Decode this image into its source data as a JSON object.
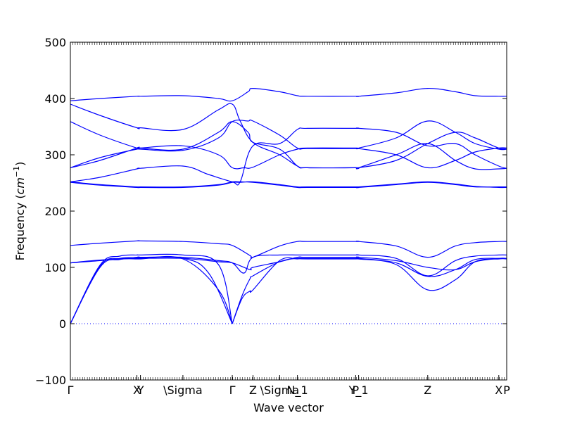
{
  "chart_data": {
    "type": "line",
    "title": "",
    "xlabel": "Wave vector",
    "ylabel": "Frequency (",
    "ylabel_math_main": "cm",
    "ylabel_math_sup": "−1",
    "ylabel_close": ")",
    "ylim": [
      -100,
      500
    ],
    "yticks": [
      -100,
      0,
      100,
      200,
      300,
      400,
      500
    ],
    "xlim": [
      0,
      22.1
    ],
    "grid": false,
    "legend": "none",
    "zero_line": {
      "y": 0,
      "style": "dotted",
      "color": "#0000ff"
    },
    "line_color": "#0000ff",
    "x_tick_positions": [
      0,
      3.37,
      3.55,
      5.7,
      8.2,
      9.25,
      10.6,
      11.5,
      14.45,
      14.6,
      18.1,
      21.7,
      22.1
    ],
    "x_tick_labels": [
      "Γ",
      "X",
      "Y",
      "\\Sigma",
      "Γ",
      "Z",
      "\\Sigma",
      "N_1",
      "P",
      "Y_1",
      "Z",
      "X",
      "P"
    ],
    "series": [
      {
        "x": [
          0,
          1.5,
          2.5,
          3.37,
          3.55,
          5.7,
          7.5,
          8.2
        ],
        "y": [
          0,
          100,
          114,
          115,
          115,
          115,
          60,
          0
        ]
      },
      {
        "x": [
          0,
          1.5,
          2.5,
          3.37,
          3.55,
          5.7,
          7.0,
          8.2
        ],
        "y": [
          0,
          102,
          116,
          117,
          117,
          116,
          90,
          0
        ]
      },
      {
        "x": [
          0,
          1.5,
          2.5,
          3.37,
          3.55,
          5.7,
          7.5,
          8.2
        ],
        "y": [
          0,
          104,
          120,
          122,
          122,
          122,
          105,
          0
        ]
      },
      {
        "x": [
          8.2,
          8.7,
          9.1,
          9.25,
          10.6,
          11.5,
          12.0,
          14.45,
          14.6,
          16.5,
          18.1,
          19.5,
          20.5,
          21.7,
          22.1
        ],
        "y": [
          0,
          45,
          58,
          60,
          112,
          115,
          115,
          115,
          115,
          105,
          60,
          78,
          110,
          115,
          115
        ]
      },
      {
        "x": [
          8.2,
          8.7,
          9.1,
          9.25,
          10.6,
          11.5,
          12.0,
          14.45,
          14.6,
          16.5,
          18.1,
          19.5,
          20.5,
          21.7,
          22.1
        ],
        "y": [
          0,
          50,
          80,
          85,
          110,
          116,
          116,
          116,
          116,
          108,
          84,
          96,
          114,
          116,
          116
        ]
      },
      {
        "x": [
          0,
          1.5,
          3.37,
          3.55,
          5.7,
          7.5,
          8.2,
          9.1,
          9.25,
          10.6,
          11.5,
          12.0,
          14.45,
          14.6,
          16.5,
          18.1,
          19.5,
          20.5,
          21.7,
          22.1
        ],
        "y": [
          108,
          113,
          116,
          116,
          116,
          110,
          108,
          96,
          100,
          110,
          118,
          118,
          118,
          118,
          112,
          100,
          96,
          110,
          116,
          116
        ]
      },
      {
        "x": [
          0,
          1.5,
          3.37,
          3.55,
          5.7,
          7.5,
          8.2,
          8.8,
          9.25,
          10.6,
          11.5,
          12.0,
          14.45,
          14.6,
          16.5,
          18.1,
          19.5,
          20.5,
          21.7,
          22.1
        ],
        "y": [
          108,
          112,
          118,
          118,
          118,
          112,
          108,
          90,
          118,
          122,
          122,
          122,
          122,
          122,
          116,
          85,
          112,
          120,
          122,
          122
        ]
      },
      {
        "x": [
          0,
          1.5,
          3.37,
          3.55,
          5.7,
          7.5,
          8.2,
          9.1,
          9.25,
          10.6,
          11.5,
          12.0,
          14.45,
          14.6,
          16.5,
          18.1,
          19.5,
          20.5,
          21.7,
          22.1
        ],
        "y": [
          139,
          143,
          147,
          147,
          146,
          142,
          139,
          121,
          118,
          138,
          146,
          146,
          146,
          146,
          138,
          118,
          138,
          144,
          146,
          146
        ]
      },
      {
        "x": [
          0,
          1.5,
          3.37,
          3.55,
          5.7,
          7.5,
          8.2,
          8.6,
          9.25,
          10.6,
          11.5,
          12.0,
          14.45,
          14.6,
          16.5,
          18.1,
          19.5,
          20.5,
          21.7,
          22.1
        ],
        "y": [
          251,
          246,
          242,
          242,
          242,
          246,
          251,
          251,
          252,
          247,
          243,
          243,
          243,
          243,
          248,
          252,
          248,
          244,
          242,
          242
        ]
      },
      {
        "x": [
          0,
          1.5,
          3.37,
          3.55,
          5.7,
          7.5,
          8.2,
          8.6,
          9.25,
          10.6,
          11.5,
          12.0,
          14.45,
          14.6,
          16.5,
          18.1,
          19.5,
          20.5,
          21.7,
          22.1
        ],
        "y": [
          252,
          247,
          243,
          243,
          243,
          247,
          252,
          252,
          251,
          246,
          242,
          242,
          242,
          242,
          247,
          251,
          247,
          243,
          243,
          243
        ]
      },
      {
        "x": [
          0,
          1.5,
          3.37,
          3.55,
          5.7,
          7.0,
          8.2,
          8.6,
          9.25,
          10.6,
          11.5,
          12.0,
          14.45,
          14.6,
          16.5,
          18.1,
          19.5,
          20.5,
          21.7,
          22.1
        ],
        "y": [
          252,
          260,
          275,
          276,
          280,
          265,
          252,
          252,
          316,
          320,
          345,
          347,
          347,
          347,
          340,
          316,
          320,
          300,
          280,
          276
        ]
      },
      {
        "x": [
          0,
          1.5,
          3.37,
          3.55,
          5.7,
          7.5,
          8.2,
          8.8,
          9.25,
          10.6,
          11.5,
          12.0,
          14.45,
          14.6,
          16.5,
          18.1,
          19.5,
          20.5,
          21.7,
          22.1
        ],
        "y": [
          277,
          290,
          312,
          312,
          316,
          300,
          277,
          277,
          278,
          300,
          310,
          312,
          312,
          312,
          330,
          360,
          340,
          320,
          310,
          310
        ]
      },
      {
        "x": [
          0,
          1.5,
          3.37,
          3.55,
          5.7,
          7.5,
          8.2,
          9.0,
          9.25,
          10.6,
          11.5,
          12.0,
          14.45,
          14.6,
          16.5,
          18.1,
          19.5,
          20.5,
          21.7,
          22.1
        ],
        "y": [
          277,
          295,
          310,
          310,
          308,
          330,
          359,
          360,
          360,
          335,
          312,
          311,
          311,
          311,
          300,
          277,
          290,
          305,
          312,
          312
        ]
      },
      {
        "x": [
          0,
          1.5,
          3.37,
          3.55,
          5.7,
          7.5,
          8.2,
          9.0,
          9.25,
          10.6,
          11.5,
          12.0,
          14.45,
          14.6,
          16.5,
          18.1,
          19.5,
          20.5,
          21.7,
          22.1
        ],
        "y": [
          359,
          335,
          312,
          312,
          310,
          340,
          359,
          340,
          322,
          310,
          280,
          277,
          277,
          277,
          290,
          320,
          340,
          330,
          312,
          312
        ]
      },
      {
        "x": [
          0,
          1.5,
          3.37,
          3.55,
          5.7,
          7.5,
          8.2,
          8.6,
          9.25,
          10.6,
          11.5,
          12.0,
          14.45,
          14.6,
          16.5,
          18.1,
          19.5,
          20.5,
          21.7,
          22.1
        ],
        "y": [
          390,
          370,
          348,
          348,
          345,
          380,
          390,
          360,
          322,
          300,
          280,
          277,
          277,
          277,
          300,
          320,
          290,
          275,
          275,
          276
        ]
      },
      {
        "x": [
          0,
          1.5,
          3.37,
          3.55,
          5.7,
          7.5,
          8.2,
          9.0,
          9.25,
          10.6,
          11.5,
          12.0,
          14.45,
          14.6,
          16.5,
          18.1,
          19.5,
          20.5,
          21.7,
          22.1
        ],
        "y": [
          396,
          400,
          404,
          404,
          405,
          400,
          396,
          412,
          418,
          412,
          405,
          404,
          404,
          404,
          410,
          418,
          412,
          405,
          404,
          404
        ]
      }
    ]
  }
}
